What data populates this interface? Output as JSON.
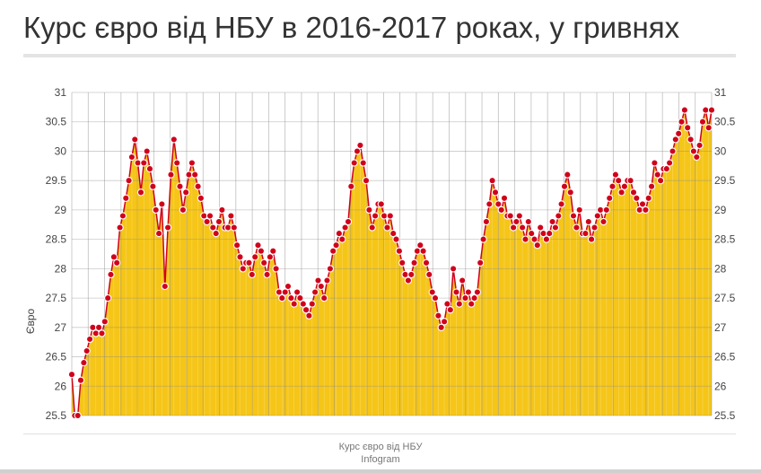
{
  "title": "Курс євро від НБУ в 2016-2017 роках, у гривнях",
  "caption": {
    "line1": "Курс євро від НБУ",
    "line2": "Infogram"
  },
  "chart_data": {
    "type": "area",
    "ylabel": "Євро",
    "ylim": [
      25.5,
      31
    ],
    "yticks": [
      "25.5",
      "26",
      "26.5",
      "27",
      "27.5",
      "28",
      "28.5",
      "29",
      "29.5",
      "30",
      "30.5",
      "31"
    ],
    "grid": true,
    "colors": {
      "fill": "#f5c518",
      "fill_light": "#fce58a",
      "line": "#d0021b",
      "grid": "#8a8a8a"
    },
    "series": [
      {
        "values": [
          26.2,
          25.5,
          25.5,
          26.1,
          26.4,
          26.6,
          26.8,
          27.0,
          26.9,
          27.0,
          26.9,
          27.1,
          27.5,
          27.9,
          28.2,
          28.1,
          28.7,
          28.9,
          29.2,
          29.5,
          29.9,
          30.2,
          29.8,
          29.3,
          29.8,
          30.0,
          29.7,
          29.4,
          29.0,
          28.6,
          29.1,
          27.7,
          28.7,
          29.6,
          30.2,
          29.8,
          29.4,
          29.0,
          29.3,
          29.6,
          29.8,
          29.6,
          29.4,
          29.2,
          28.9,
          28.8,
          28.9,
          28.7,
          28.6,
          28.8,
          29.0,
          28.7,
          28.7,
          28.9,
          28.7,
          28.4,
          28.2,
          28.0,
          28.1,
          28.1,
          27.9,
          28.2,
          28.4,
          28.3,
          28.1,
          27.9,
          28.2,
          28.3,
          28.0,
          27.6,
          27.5,
          27.6,
          27.7,
          27.5,
          27.4,
          27.6,
          27.5,
          27.4,
          27.3,
          27.2,
          27.4,
          27.6,
          27.8,
          27.7,
          27.5,
          27.8,
          28.0,
          28.3,
          28.4,
          28.6,
          28.5,
          28.7,
          28.8,
          29.4,
          29.8,
          30.0,
          30.1,
          29.8,
          29.5,
          29.0,
          28.7,
          28.9,
          29.1,
          29.1,
          28.9,
          28.7,
          28.9,
          28.6,
          28.5,
          28.3,
          28.1,
          27.9,
          27.8,
          27.9,
          28.1,
          28.3,
          28.4,
          28.3,
          28.1,
          27.9,
          27.6,
          27.5,
          27.2,
          27.0,
          27.1,
          27.4,
          27.3,
          28.0,
          27.6,
          27.4,
          27.8,
          27.5,
          27.6,
          27.4,
          27.5,
          27.6,
          28.1,
          28.5,
          28.8,
          29.1,
          29.5,
          29.3,
          29.1,
          29.0,
          29.2,
          28.9,
          28.9,
          28.7,
          28.8,
          28.9,
          28.7,
          28.5,
          28.8,
          28.6,
          28.5,
          28.4,
          28.7,
          28.6,
          28.5,
          28.6,
          28.8,
          28.7,
          28.9,
          29.1,
          29.4,
          29.6,
          29.3,
          28.9,
          28.7,
          29.0,
          28.6,
          28.6,
          28.8,
          28.5,
          28.7,
          28.9,
          29.0,
          28.8,
          29.0,
          29.2,
          29.4,
          29.6,
          29.5,
          29.3,
          29.4,
          29.5,
          29.5,
          29.3,
          29.2,
          29.0,
          29.1,
          29.0,
          29.2,
          29.4,
          29.8,
          29.6,
          29.5,
          29.7,
          29.7,
          29.8,
          30.0,
          30.2,
          30.3,
          30.5,
          30.7,
          30.4,
          30.2,
          30.0,
          29.9,
          30.1,
          30.5,
          30.7,
          30.4,
          30.7
        ]
      }
    ]
  }
}
